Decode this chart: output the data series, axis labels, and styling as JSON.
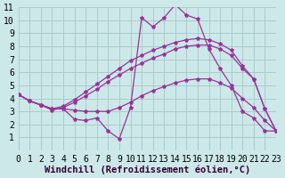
{
  "xlabel": "Windchill (Refroidissement éolien,°C)",
  "bg_color": "#cce8e8",
  "grid_color": "#aacccc",
  "line_color": "#993399",
  "xmin": 0,
  "xmax": 23,
  "ymin": 0,
  "ymax": 11,
  "line1_x": [
    0,
    1,
    2,
    3,
    4,
    5,
    6,
    7,
    8,
    9,
    10,
    11,
    12,
    13,
    14,
    15,
    16,
    17,
    18,
    19,
    20,
    21,
    22,
    23
  ],
  "line1_y": [
    4.3,
    3.8,
    3.5,
    3.1,
    3.3,
    3.7,
    4.2,
    4.7,
    5.3,
    5.8,
    6.3,
    6.7,
    7.1,
    7.4,
    7.8,
    8.0,
    8.1,
    8.1,
    7.8,
    7.3,
    6.3,
    5.5,
    3.2,
    1.5
  ],
  "line2_x": [
    0,
    1,
    2,
    3,
    4,
    5,
    6,
    7,
    8,
    9,
    10,
    11,
    12,
    13,
    14,
    15,
    16,
    17,
    18,
    19,
    20,
    21,
    22,
    23
  ],
  "line2_y": [
    4.3,
    3.8,
    3.5,
    3.2,
    3.4,
    3.9,
    4.5,
    5.1,
    5.7,
    6.3,
    6.9,
    7.3,
    7.7,
    8.0,
    8.3,
    8.5,
    8.6,
    8.5,
    8.2,
    7.7,
    6.5,
    5.5,
    3.2,
    1.5
  ],
  "line3_x": [
    0,
    1,
    2,
    3,
    4,
    5,
    6,
    7,
    8,
    9,
    10,
    11,
    12,
    13,
    14,
    15,
    16,
    17,
    18,
    19,
    20,
    21,
    22,
    23
  ],
  "line3_y": [
    4.3,
    3.8,
    3.5,
    3.2,
    3.2,
    3.1,
    3.0,
    3.0,
    3.0,
    3.3,
    3.7,
    4.2,
    4.6,
    4.9,
    5.2,
    5.4,
    5.5,
    5.5,
    5.2,
    4.8,
    4.0,
    3.3,
    2.3,
    1.5
  ],
  "line4_x": [
    0,
    1,
    2,
    3,
    4,
    5,
    6,
    7,
    8,
    9,
    10,
    11,
    12,
    13,
    14,
    15,
    16,
    17,
    18,
    19,
    20,
    21,
    22,
    23
  ],
  "line4_y": [
    4.3,
    3.8,
    3.5,
    3.2,
    3.2,
    2.4,
    2.3,
    2.5,
    1.5,
    0.9,
    3.3,
    10.2,
    9.5,
    10.2,
    11.2,
    10.4,
    10.1,
    7.8,
    6.3,
    5.0,
    3.0,
    2.5,
    1.5,
    1.5
  ],
  "fontname": "monospace",
  "tick_fontsize": 7,
  "label_fontsize": 7.5
}
